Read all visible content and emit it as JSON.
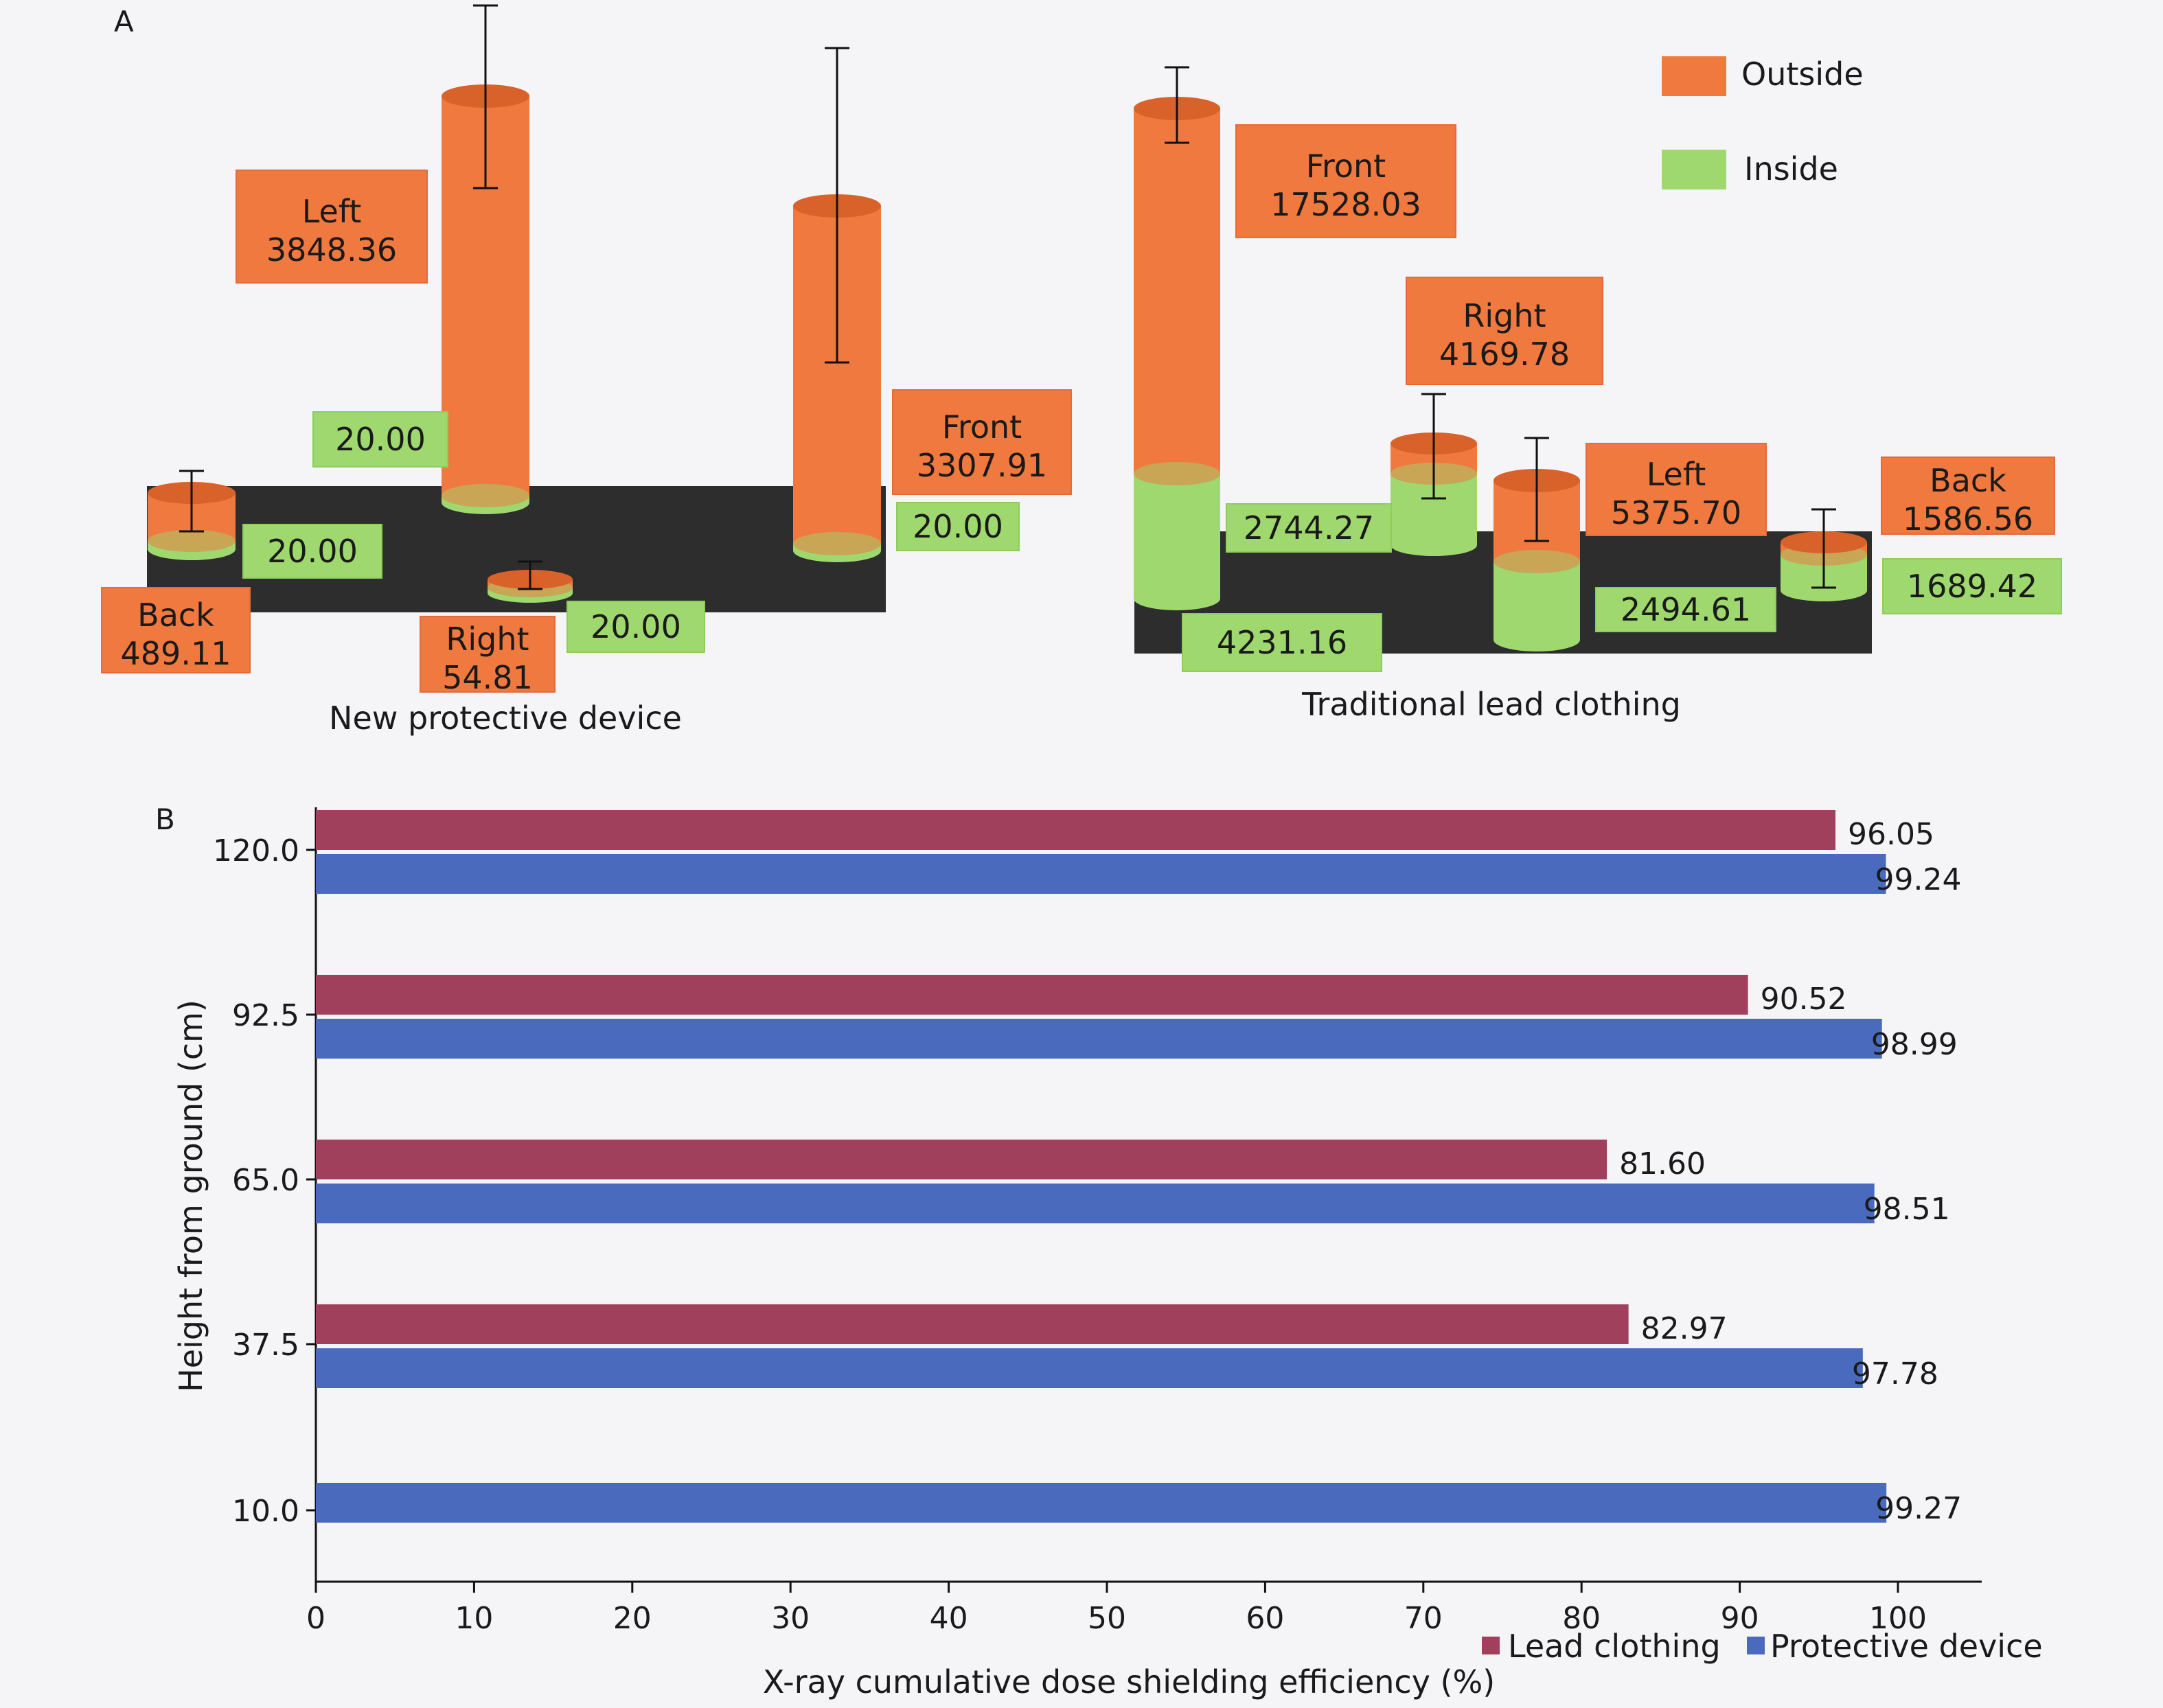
{
  "colors": {
    "outside": "#f0793f",
    "outside_dark": "#d9622b",
    "inside": "#9fd86e",
    "inside_dark": "#7dc24c",
    "platform": "#2d2d2d",
    "lead": "#a0405c",
    "device": "#4a6bbd",
    "background": "#f5f4f7"
  },
  "chart_data": [
    {
      "type": "bar",
      "panel_label": "A",
      "style": "3d-cylinder",
      "legend": {
        "position": "top-right",
        "entries": [
          "Outside",
          "Inside"
        ]
      },
      "groups": [
        {
          "name": "New protective device",
          "bars": [
            {
              "position": "Back",
              "outside": 489.11,
              "inside": 20.0
            },
            {
              "position": "Left",
              "outside": 3848.36,
              "inside": 20.0
            },
            {
              "position": "Right",
              "outside": 54.81,
              "inside": 20.0
            },
            {
              "position": "Front",
              "outside": 3307.91,
              "inside": 20.0
            }
          ]
        },
        {
          "name": "Traditional lead clothing",
          "bars": [
            {
              "position": "Front",
              "outside": 17528.03,
              "inside": 4231.16
            },
            {
              "position": "Right",
              "outside": 4169.78,
              "inside": 2744.27
            },
            {
              "position": "Left",
              "outside": 5375.7,
              "inside": 2494.61
            },
            {
              "position": "Back",
              "outside": 1586.56,
              "inside": 1689.42
            }
          ]
        }
      ],
      "outside_labels": [
        {
          "name": "Left",
          "value": "3848.36"
        },
        {
          "name": "Front",
          "value": "3307.91"
        },
        {
          "name": "Back",
          "value": "489.11"
        },
        {
          "name": "Right",
          "value": "54.81"
        },
        {
          "name": "Front",
          "value": "17528.03"
        },
        {
          "name": "Right",
          "value": "4169.78"
        },
        {
          "name": "Left",
          "value": "5375.70"
        },
        {
          "name": "Back",
          "value": "1586.56"
        }
      ],
      "inside_labels": [
        "20.00",
        "20.00",
        "20.00",
        "20.00",
        "2744.27",
        "4231.16",
        "2494.61",
        "1689.42"
      ]
    },
    {
      "type": "bar",
      "orientation": "horizontal",
      "panel_label": "B",
      "categories": [
        "120.0",
        "92.5",
        "65.0",
        "37.5",
        "10.0"
      ],
      "series": [
        {
          "name": "Lead clothing",
          "values": [
            96.05,
            90.52,
            81.6,
            82.97,
            null
          ],
          "labels": [
            "96.05",
            "90.52",
            "81.60",
            "82.97",
            ""
          ]
        },
        {
          "name": "Protective device",
          "values": [
            99.24,
            98.99,
            98.51,
            97.78,
            99.27
          ],
          "labels": [
            "99.24",
            "98.99",
            "98.51",
            "97.78",
            "99.27"
          ]
        }
      ],
      "xlabel": "X-ray cumulative dose shielding efficiency (%)",
      "ylabel": "Height from ground (cm)",
      "xlim": [
        0,
        100
      ],
      "xticks": [
        "0",
        "10",
        "20",
        "30",
        "40",
        "50",
        "60",
        "70",
        "80",
        "90",
        "100"
      ],
      "legend": {
        "position": "bottom-right"
      },
      "grid": false
    }
  ]
}
